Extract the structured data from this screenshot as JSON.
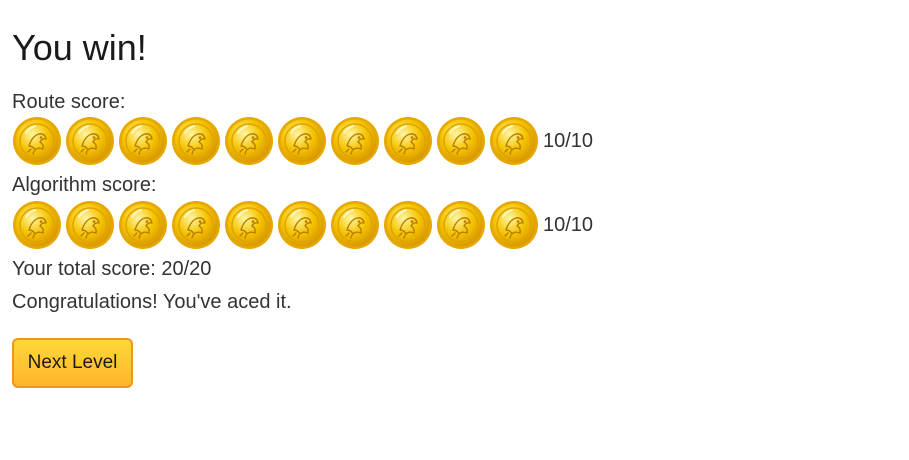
{
  "title": "You win!",
  "route": {
    "label": "Route score:",
    "score_text": "10/10",
    "earned": 10,
    "max": 10
  },
  "algorithm": {
    "label": "Algorithm score:",
    "score_text": "10/10",
    "earned": 10,
    "max": 10
  },
  "total_text": "Your total score: 20/20",
  "message": "Congratulations! You've aced it.",
  "next_button_label": "Next Level",
  "coin_icon": "gold-coin-icon",
  "colors": {
    "coin_gold": "#f5c400",
    "coin_rim": "#e6a800",
    "button_border": "#f0951f",
    "button_fill_top": "#ffd83a",
    "button_fill_bottom": "#ffb52a"
  }
}
